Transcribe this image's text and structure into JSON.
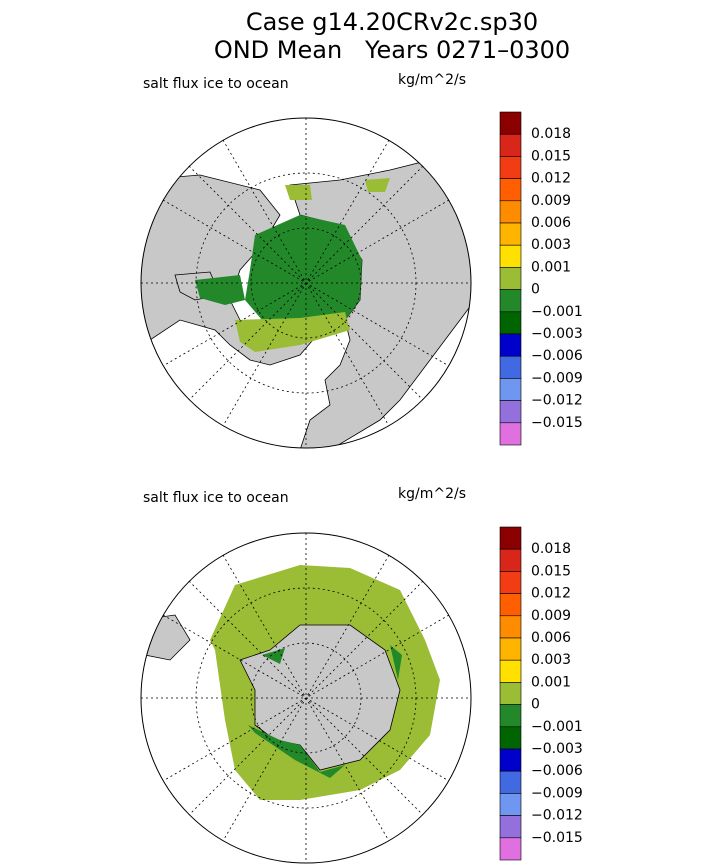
{
  "header": {
    "title": [
      "Case g14.20CRv2c.sp30",
      "OND Mean   Years 0271–0300"
    ]
  },
  "panels": [
    {
      "label": "salt flux ice to ocean",
      "units": "kg/m^2/s",
      "colorbar": {
        "colors": [
          "#8b0000",
          "#d8261a",
          "#f23c14",
          "#ff5f00",
          "#ff8c00",
          "#ffb400",
          "#ffe000",
          "#9abd35",
          "#22882a",
          "#006400",
          "#0000cd",
          "#4169e1",
          "#6f96f0",
          "#9370db",
          "#e070e0"
        ],
        "labels": [
          "0.018",
          "0.015",
          "0.012",
          "0.009",
          "0.006",
          "0.003",
          "0.001",
          "0",
          "−0.001",
          "−0.003",
          "−0.006",
          "−0.009",
          "−0.012",
          "−0.015"
        ]
      }
    },
    {
      "label": "salt flux ice to ocean",
      "units": "kg/m^2/s",
      "colorbar": {
        "colors": [
          "#8b0000",
          "#d8261a",
          "#f23c14",
          "#ff5f00",
          "#ff8c00",
          "#ffb400",
          "#ffe000",
          "#9abd35",
          "#22882a",
          "#006400",
          "#0000cd",
          "#4169e1",
          "#6f96f0",
          "#9370db",
          "#e070e0"
        ],
        "labels": [
          "0.018",
          "0.015",
          "0.012",
          "0.009",
          "0.006",
          "0.003",
          "0.001",
          "0",
          "−0.001",
          "−0.003",
          "−0.006",
          "−0.009",
          "−0.012",
          "−0.015"
        ]
      }
    }
  ]
}
